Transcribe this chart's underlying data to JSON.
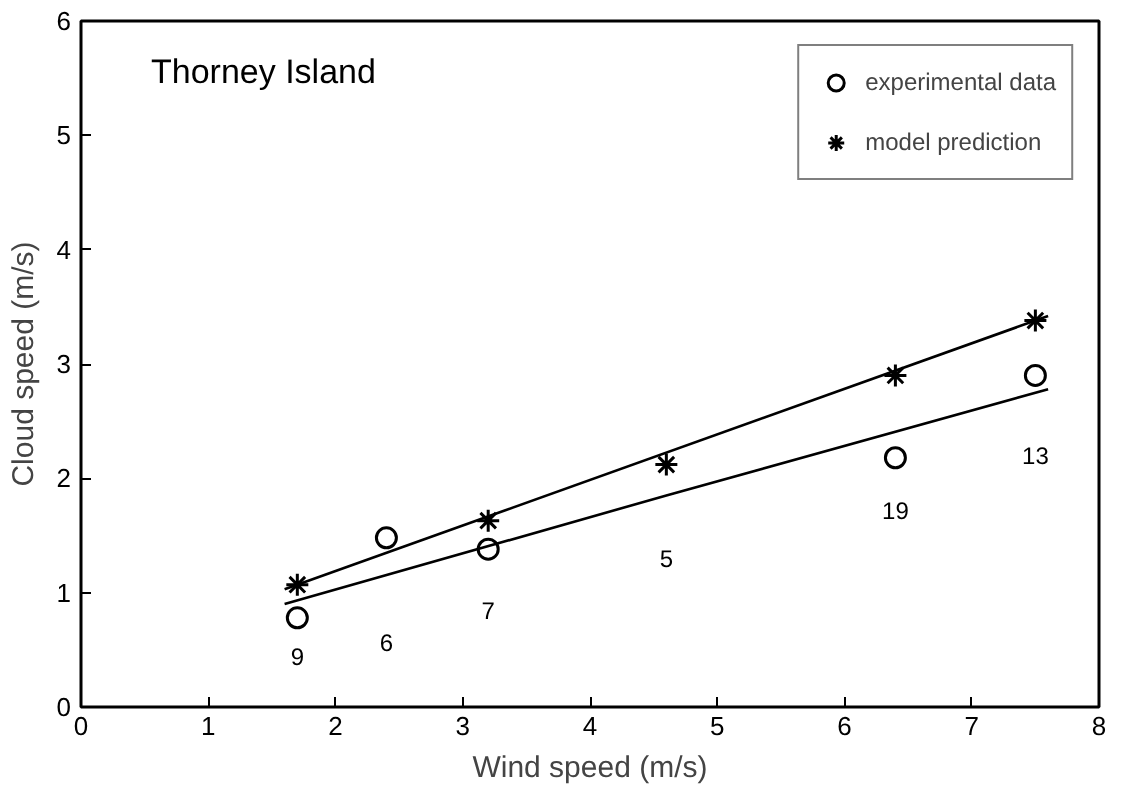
{
  "chart_data": {
    "type": "scatter",
    "title": "Thorney Island",
    "xlabel": "Wind speed (m/s)",
    "ylabel": "Cloud speed (m/s)",
    "xlim": [
      0,
      8
    ],
    "ylim": [
      0,
      6
    ],
    "xticks": [
      0,
      1,
      2,
      3,
      4,
      5,
      6,
      7,
      8
    ],
    "yticks": [
      0,
      1,
      2,
      3,
      4,
      5,
      6
    ],
    "grid": false,
    "legend": "top right",
    "series": [
      {
        "name": "experimental data",
        "marker": "circle",
        "color": "#000000",
        "x": [
          1.7,
          2.4,
          3.2,
          6.4,
          7.5
        ],
        "values": [
          0.78,
          1.48,
          1.38,
          2.18,
          2.9
        ]
      },
      {
        "name": "model prediction",
        "marker": "cross",
        "color": "#000000",
        "x": [
          1.7,
          3.2,
          4.6,
          6.4,
          7.5
        ],
        "values": [
          1.07,
          1.63,
          2.12,
          2.9,
          3.38
        ]
      },
      {
        "type": "line",
        "color": "#000000",
        "x": [
          1.6,
          7.6
        ],
        "values": [
          1.03,
          3.42
        ]
      },
      {
        "type": "line",
        "color": "#000000",
        "x": [
          1.6,
          4.6,
          7.6
        ],
        "values": [
          0.9,
          1.85,
          2.78
        ]
      }
    ],
    "annotations": [
      "9",
      "6",
      "7",
      "5",
      "19",
      "13"
    ]
  }
}
